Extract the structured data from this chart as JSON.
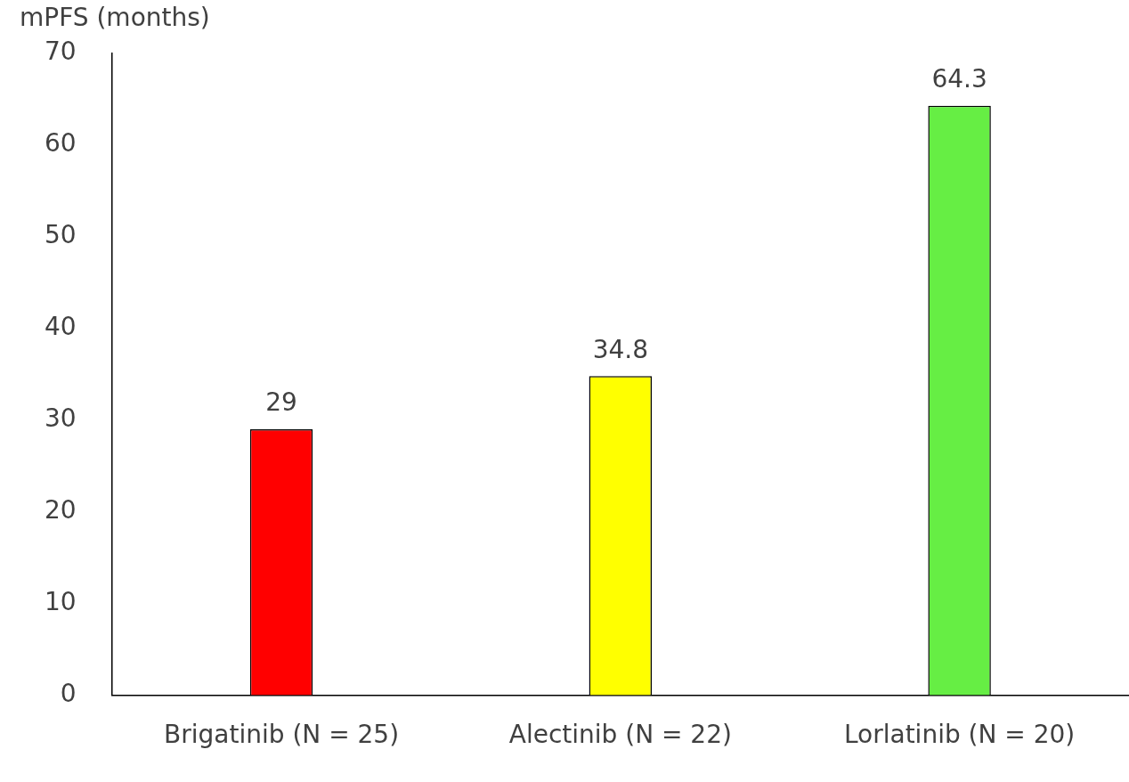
{
  "chart_data": {
    "type": "bar",
    "ylabel": "mPFS (months)",
    "categories": [
      "Brigatinib (N = 25)",
      "Alectinib (N = 22)",
      "Lorlatinib (N = 20)"
    ],
    "values": [
      29,
      34.8,
      64.3
    ],
    "colors": [
      "#ff0000",
      "#ffff00",
      "#66ee44"
    ],
    "ylim": [
      0,
      70
    ],
    "yticks": [
      0,
      10,
      20,
      30,
      40,
      50,
      60,
      70
    ],
    "grid": false,
    "legend": false,
    "data_labels": true
  }
}
